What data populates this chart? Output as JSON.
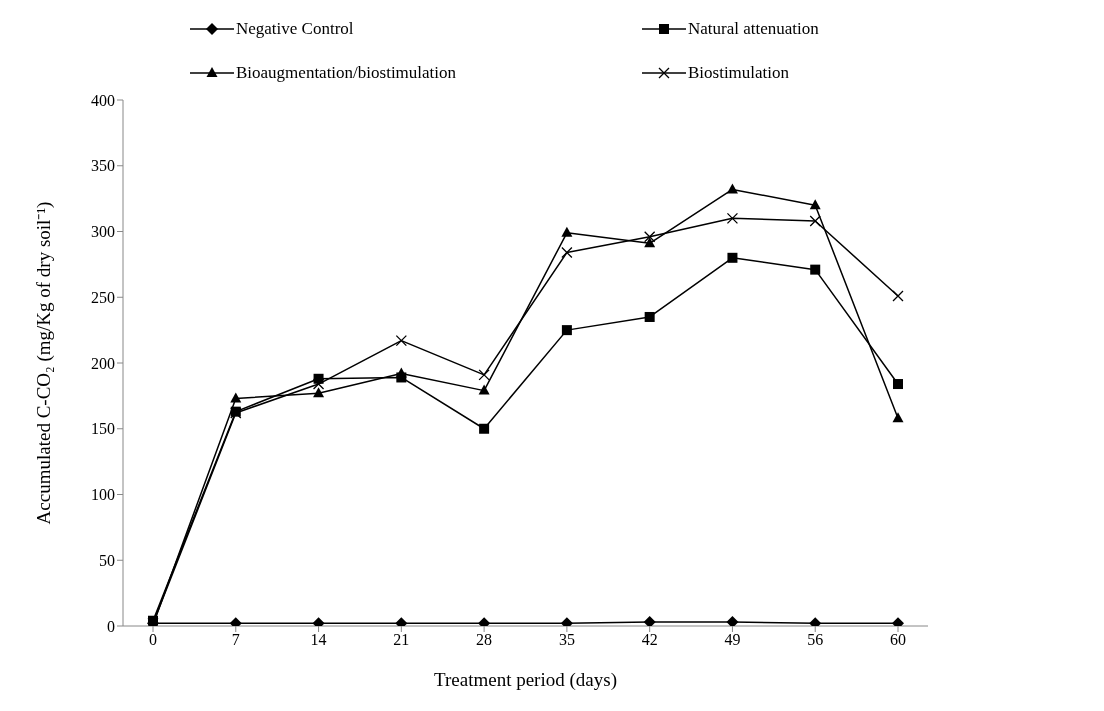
{
  "chart_data": {
    "type": "line",
    "xlabel": "Treatment period (days)",
    "ylabel": "Accumulated C-CO₂ (mg/Kg of dry soil⁻¹)",
    "categories": [
      "0",
      "7",
      "14",
      "21",
      "28",
      "35",
      "42",
      "49",
      "56",
      "60"
    ],
    "ylim": [
      0,
      400
    ],
    "yticks": [
      0,
      50,
      100,
      150,
      200,
      250,
      300,
      350,
      400
    ],
    "grid": false,
    "legend": "top",
    "line_style": "solid",
    "series": [
      {
        "name": "Negative Control",
        "color": "#000000",
        "marker": "diamond",
        "values": [
          2,
          2,
          2,
          2,
          2,
          2,
          3,
          3,
          2,
          2
        ]
      },
      {
        "name": "Natural attenuation",
        "color": "#000000",
        "marker": "square",
        "values": [
          4,
          163,
          188,
          189,
          150,
          225,
          235,
          280,
          271,
          184
        ]
      },
      {
        "name": "Bioaugmentation/biostimulation",
        "color": "#000000",
        "marker": "triangle",
        "values": [
          1,
          173,
          177,
          192,
          179,
          299,
          291,
          332,
          320,
          158
        ]
      },
      {
        "name": "Biostimulation",
        "color": "#000000",
        "marker": "cross",
        "values": [
          2,
          162,
          184,
          217,
          191,
          284,
          296,
          310,
          308,
          251
        ]
      }
    ]
  }
}
